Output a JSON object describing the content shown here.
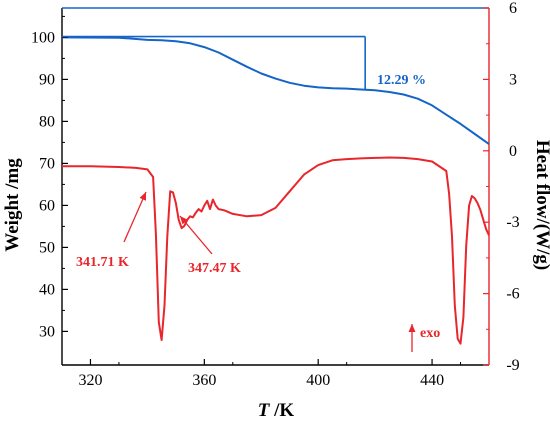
{
  "chart_data": {
    "type": "line",
    "title": "",
    "x_axis": {
      "label_italic": "T",
      "label_unit": " /K",
      "range": [
        310,
        460
      ],
      "ticks": [
        320,
        360,
        400,
        440
      ],
      "tick_labels": [
        "320",
        "360",
        "400",
        "440"
      ]
    },
    "y_left": {
      "label": "Weight /mg",
      "range": [
        22,
        107
      ],
      "ticks": [
        30,
        40,
        50,
        60,
        70,
        80,
        90,
        100
      ],
      "tick_labels": [
        "30",
        "40",
        "50",
        "60",
        "70",
        "80",
        "90",
        "100"
      ],
      "color": "#000000"
    },
    "y_right": {
      "label": "Heat flow/(W/g)",
      "range": [
        -9,
        6
      ],
      "ticks": [
        -9,
        -6,
        -3,
        0,
        3,
        6
      ],
      "tick_labels": [
        "-9",
        "-6",
        "-3",
        "0",
        "3",
        "6"
      ],
      "color": "#e8262b"
    },
    "grid": false,
    "series": [
      {
        "axis": "left",
        "color": "#1565c8",
        "x": [
          310,
          330,
          335,
          340,
          345,
          350,
          355,
          360,
          365,
          370,
          375,
          380,
          385,
          390,
          395,
          400,
          405,
          410,
          415,
          420,
          425,
          430,
          435,
          440,
          445,
          450,
          455,
          460
        ],
        "y": [
          100.0,
          99.9,
          99.7,
          99.4,
          99.3,
          99.1,
          98.6,
          97.7,
          96.4,
          94.7,
          93.0,
          91.4,
          90.2,
          89.2,
          88.5,
          88.1,
          87.9,
          87.8,
          87.6,
          87.4,
          87.0,
          86.4,
          85.4,
          83.8,
          81.6,
          79.4,
          77.0,
          74.6
        ]
      },
      {
        "axis": "right",
        "color": "#e8262b",
        "x": [
          310,
          320,
          330,
          336,
          340,
          342,
          343,
          344,
          345,
          346,
          347,
          348,
          349,
          350,
          351,
          352,
          353,
          354,
          355,
          356,
          357,
          358,
          359,
          360,
          361,
          362,
          363,
          364,
          365,
          367,
          370,
          375,
          380,
          385,
          390,
          395,
          400,
          405,
          410,
          415,
          420,
          425,
          430,
          435,
          440,
          445,
          446,
          447,
          448,
          449,
          450,
          451,
          452,
          453,
          454,
          455,
          456,
          457,
          458,
          459,
          460
        ],
        "y": [
          -0.65,
          -0.65,
          -0.68,
          -0.72,
          -0.78,
          -1.1,
          -3.5,
          -7.2,
          -7.95,
          -6.5,
          -3.6,
          -1.7,
          -1.75,
          -2.2,
          -2.9,
          -3.25,
          -3.15,
          -2.9,
          -2.75,
          -2.8,
          -2.6,
          -2.45,
          -2.55,
          -2.3,
          -2.1,
          -2.45,
          -2.05,
          -2.3,
          -2.45,
          -2.5,
          -2.65,
          -2.75,
          -2.7,
          -2.4,
          -1.7,
          -1.0,
          -0.6,
          -0.4,
          -0.35,
          -0.32,
          -0.3,
          -0.28,
          -0.3,
          -0.35,
          -0.45,
          -0.85,
          -1.8,
          -3.6,
          -6.5,
          -7.9,
          -8.1,
          -7.0,
          -4.0,
          -2.3,
          -1.9,
          -2.0,
          -2.2,
          -2.5,
          -2.9,
          -3.3,
          -3.55
        ]
      }
    ],
    "annotations": {
      "mass_loss": "12.29 %",
      "peak1": "341.71 K",
      "peak2": "347.47 K",
      "exo": "exo"
    }
  }
}
